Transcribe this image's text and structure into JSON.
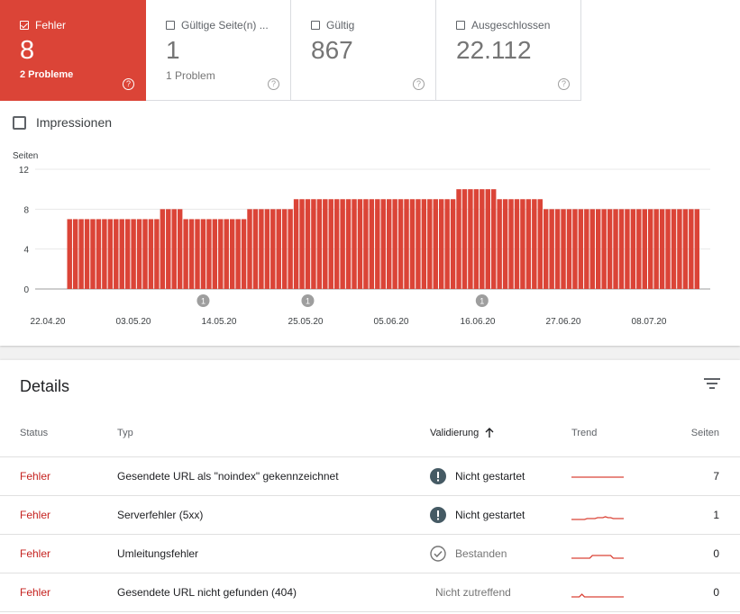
{
  "tiles": [
    {
      "label": "Fehler",
      "value": "8",
      "sub": "2 Probleme",
      "checked": true
    },
    {
      "label": "Gültige Seite(n) ...",
      "value": "1",
      "sub": "1 Problem",
      "checked": false
    },
    {
      "label": "Gültig",
      "value": "867",
      "sub": "",
      "checked": false
    },
    {
      "label": "Ausgeschlossen",
      "value": "22.112",
      "sub": "",
      "checked": false
    }
  ],
  "help_glyph": "?",
  "impressions_label": "Impressionen",
  "chart_data": {
    "type": "bar",
    "ylabel": "Seiten",
    "ylim": [
      0,
      12
    ],
    "yticks": [
      "12",
      "8",
      "4",
      "0"
    ],
    "x_tick_labels": [
      "22.04.20",
      "03.05.20",
      "14.05.20",
      "25.05.20",
      "05.06.20",
      "16.06.20",
      "27.06.20",
      "08.07.20"
    ],
    "values": [
      7,
      7,
      7,
      7,
      7,
      7,
      7,
      7,
      7,
      7,
      7,
      7,
      7,
      7,
      7,
      7,
      8,
      8,
      8,
      8,
      7,
      7,
      7,
      7,
      7,
      7,
      7,
      7,
      7,
      7,
      7,
      8,
      8,
      8,
      8,
      8,
      8,
      8,
      8,
      9,
      9,
      9,
      9,
      9,
      9,
      9,
      9,
      9,
      9,
      9,
      9,
      9,
      9,
      9,
      9,
      9,
      9,
      9,
      9,
      9,
      9,
      9,
      9,
      9,
      9,
      9,
      9,
      10,
      10,
      10,
      10,
      10,
      10,
      10,
      9,
      9,
      9,
      9,
      9,
      9,
      9,
      9,
      8,
      8,
      8,
      8,
      8,
      8,
      8,
      8,
      8,
      8,
      8,
      8,
      8,
      8,
      8,
      8,
      8,
      8,
      8,
      8,
      8,
      8,
      8,
      8,
      8,
      8,
      8
    ],
    "annotations": [
      {
        "label": "1",
        "index": 23
      },
      {
        "label": "1",
        "index": 41
      },
      {
        "label": "1",
        "index": 71
      }
    ],
    "color": "#db4437",
    "grid": true
  },
  "details": {
    "title": "Details",
    "columns": {
      "status": "Status",
      "type": "Typ",
      "validation": "Validierung",
      "trend": "Trend",
      "pages": "Seiten"
    },
    "rows": [
      {
        "status": "Fehler",
        "type": "Gesendete URL als \"noindex\" gekennzeichnet",
        "validation": "Nicht gestartet",
        "validation_icon": "exclamation-icon",
        "pages": "7",
        "trend": [
          7,
          7,
          7,
          7,
          7,
          7,
          7,
          7,
          7,
          7,
          7,
          7,
          7,
          7,
          7,
          7,
          7,
          7,
          7,
          7,
          7
        ]
      },
      {
        "status": "Fehler",
        "type": "Serverfehler (5xx)",
        "validation": "Nicht gestartet",
        "validation_icon": "exclamation-icon",
        "pages": "1",
        "trend": [
          0,
          0,
          0,
          0,
          0,
          0,
          1,
          1,
          1,
          1,
          2,
          2,
          2,
          3,
          2,
          2,
          1,
          1,
          1,
          1,
          1
        ]
      },
      {
        "status": "Fehler",
        "type": "Umleitungsfehler",
        "validation": "Bestanden",
        "validation_icon": "check-circle-icon",
        "pages": "0",
        "trend": [
          0,
          0,
          0,
          0,
          0,
          0,
          0,
          0,
          1,
          1,
          1,
          1,
          1,
          1,
          1,
          1,
          0,
          0,
          0,
          0,
          0
        ]
      },
      {
        "status": "Fehler",
        "type": "Gesendete URL nicht gefunden (404)",
        "validation": "Nicht zutreffend",
        "validation_icon": "",
        "pages": "0",
        "trend": [
          0,
          0,
          0,
          0,
          1,
          0,
          0,
          0,
          0,
          0,
          0,
          0,
          0,
          0,
          0,
          0,
          0,
          0,
          0,
          0,
          0
        ]
      }
    ]
  },
  "colors": {
    "error": "#db4437",
    "status_text": "#c5221f",
    "trend": "#db4437"
  }
}
